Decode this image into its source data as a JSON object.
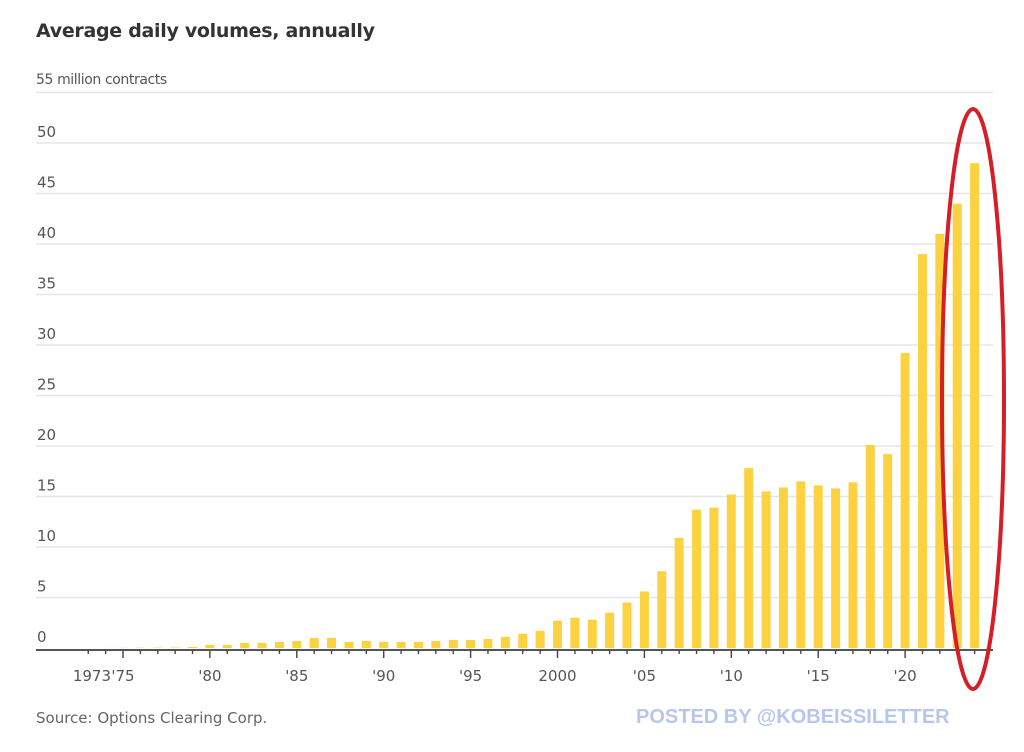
{
  "chart_data": {
    "type": "bar",
    "title": "Average daily volumes, annually",
    "ylabel": "million contracts",
    "unit_label": "55 million contracts",
    "xlabel": "",
    "source": "Source: Options Clearing Corp.",
    "watermark": "POSTED BY @KOBEISSILETTER",
    "ylim": [
      0,
      55
    ],
    "yticks": [
      0,
      5,
      10,
      15,
      20,
      25,
      30,
      35,
      40,
      45,
      50
    ],
    "xlim": [
      1973,
      2024
    ],
    "xtick_labels": [
      {
        "year": 1973,
        "label": "1973"
      },
      {
        "year": 1975,
        "label": "'75"
      },
      {
        "year": 1980,
        "label": "'80"
      },
      {
        "year": 1985,
        "label": "'85"
      },
      {
        "year": 1990,
        "label": "'90"
      },
      {
        "year": 1995,
        "label": "'95"
      },
      {
        "year": 2000,
        "label": "2000"
      },
      {
        "year": 2005,
        "label": "'05"
      },
      {
        "year": 2010,
        "label": "'10"
      },
      {
        "year": 2015,
        "label": "'15"
      },
      {
        "year": 2020,
        "label": "'20"
      }
    ],
    "grid": true,
    "bar_color": "#fcd240",
    "highlight_color": "#d41f26",
    "highlight_years": [
      2022,
      2023,
      2024
    ],
    "categories": [
      1973,
      1974,
      1975,
      1976,
      1977,
      1978,
      1979,
      1980,
      1981,
      1982,
      1983,
      1984,
      1985,
      1986,
      1987,
      1988,
      1989,
      1990,
      1991,
      1992,
      1993,
      1994,
      1995,
      1996,
      1997,
      1998,
      1999,
      2000,
      2001,
      2002,
      2003,
      2004,
      2005,
      2006,
      2007,
      2008,
      2009,
      2010,
      2011,
      2012,
      2013,
      2014,
      2015,
      2016,
      2017,
      2018,
      2019,
      2020,
      2021,
      2022,
      2023,
      2024
    ],
    "values": [
      0.0,
      0.01,
      0.02,
      0.03,
      0.04,
      0.05,
      0.1,
      0.3,
      0.3,
      0.5,
      0.5,
      0.6,
      0.7,
      1.0,
      1.0,
      0.6,
      0.7,
      0.6,
      0.6,
      0.6,
      0.7,
      0.8,
      0.8,
      0.9,
      1.1,
      1.4,
      1.7,
      2.7,
      3.0,
      2.8,
      3.5,
      4.5,
      5.6,
      7.6,
      10.9,
      13.7,
      13.9,
      15.2,
      17.8,
      15.5,
      15.9,
      16.5,
      16.1,
      15.8,
      16.4,
      20.1,
      19.2,
      29.2,
      39.0,
      41.0,
      44.0,
      48.0
    ]
  }
}
